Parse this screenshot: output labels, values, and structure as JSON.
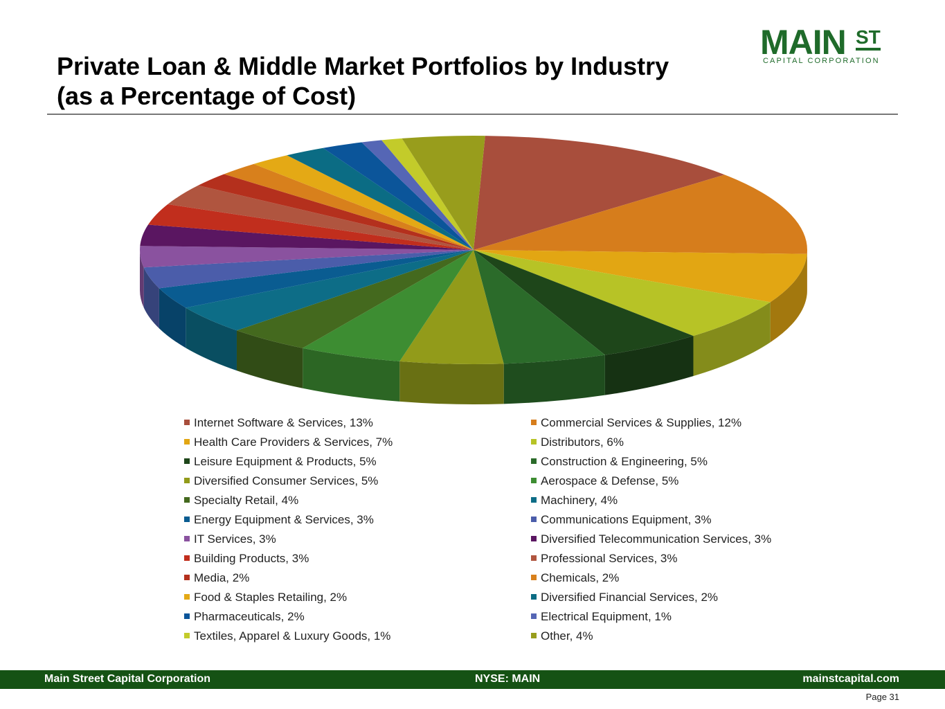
{
  "header": {
    "title_line1": "Private Loan & Middle Market Portfolios by Industry",
    "title_line2": "(as a Percentage of Cost)"
  },
  "logo": {
    "main": "MAIN",
    "superscript": "ST",
    "subtitle": "CAPITAL CORPORATION",
    "color": "#1f6b2a"
  },
  "chart_data": {
    "type": "pie",
    "title": "",
    "start_category": "Internet Software & Services",
    "slices": [
      {
        "label": "Internet Software & Services, 13%",
        "name": "Internet Software & Services",
        "value": 13,
        "color": "#a84e3c"
      },
      {
        "label": "Commercial Services & Supplies, 12%",
        "name": "Commercial Services & Supplies",
        "value": 12,
        "color": "#d67d1c"
      },
      {
        "label": "Health Care Providers & Services, 7%",
        "name": "Health Care Providers & Services",
        "value": 7,
        "color": "#e2a613"
      },
      {
        "label": "Distributors, 6%",
        "name": "Distributors",
        "value": 6,
        "color": "#b7c326"
      },
      {
        "label": "Leisure Equipment & Products, 5%",
        "name": "Leisure Equipment & Products",
        "value": 5,
        "color": "#1e461a"
      },
      {
        "label": "Construction & Engineering, 5%",
        "name": "Construction & Engineering",
        "value": 5,
        "color": "#2b6b2a"
      },
      {
        "label": "Diversified Consumer Services, 5%",
        "name": "Diversified Consumer Services",
        "value": 5,
        "color": "#929b1a"
      },
      {
        "label": "Aerospace & Defense, 5%",
        "name": "Aerospace & Defense",
        "value": 5,
        "color": "#3d8d32"
      },
      {
        "label": "Specialty Retail, 4%",
        "name": "Specialty Retail",
        "value": 4,
        "color": "#44691e"
      },
      {
        "label": "Machinery, 4%",
        "name": "Machinery",
        "value": 4,
        "color": "#0d6d87"
      },
      {
        "label": "Energy Equipment & Services, 3%",
        "name": "Energy Equipment & Services",
        "value": 3,
        "color": "#0a5c91"
      },
      {
        "label": "Communications Equipment, 3%",
        "name": "Communications Equipment",
        "value": 3,
        "color": "#4b5daa"
      },
      {
        "label": "IT Services, 3%",
        "name": "IT Services",
        "value": 3,
        "color": "#8a529f"
      },
      {
        "label": "Diversified Telecommunication Services, 3%",
        "name": "Diversified Telecommunication Services",
        "value": 3,
        "color": "#5a1661"
      },
      {
        "label": "Building Products, 3%",
        "name": "Building Products",
        "value": 3,
        "color": "#c12e1d"
      },
      {
        "label": "Professional Services, 3%",
        "name": "Professional Services",
        "value": 3,
        "color": "#b0553f"
      },
      {
        "label": "Media, 2%",
        "name": "Media",
        "value": 2,
        "color": "#b4301d"
      },
      {
        "label": "Chemicals, 2%",
        "name": "Chemicals",
        "value": 2,
        "color": "#d8801c"
      },
      {
        "label": "Food & Staples Retailing, 2%",
        "name": "Food & Staples Retailing",
        "value": 2,
        "color": "#e4a915"
      },
      {
        "label": "Diversified Financial Services, 2%",
        "name": "Diversified Financial Services",
        "value": 2,
        "color": "#0b6c84"
      },
      {
        "label": "Pharmaceuticals, 2%",
        "name": "Pharmaceuticals",
        "value": 2,
        "color": "#0b559a"
      },
      {
        "label": "Electrical Equipment, 1%",
        "name": "Electrical Equipment",
        "value": 1,
        "color": "#5566b5"
      },
      {
        "label": "Textiles, Apparel & Luxury Goods, 1%",
        "name": "Textiles, Apparel & Luxury Goods",
        "value": 1,
        "color": "#c3cb2a"
      },
      {
        "label": "Other, 4%",
        "name": "Other",
        "value": 4,
        "color": "#989d1c"
      }
    ],
    "legend_placement": "bottom",
    "legend_columns": 2
  },
  "footer": {
    "left": "Main Street Capital Corporation",
    "center": "NYSE: MAIN",
    "right": "mainstcapital.com",
    "bg_color": "#155214"
  },
  "page": {
    "label": "Page  31"
  }
}
